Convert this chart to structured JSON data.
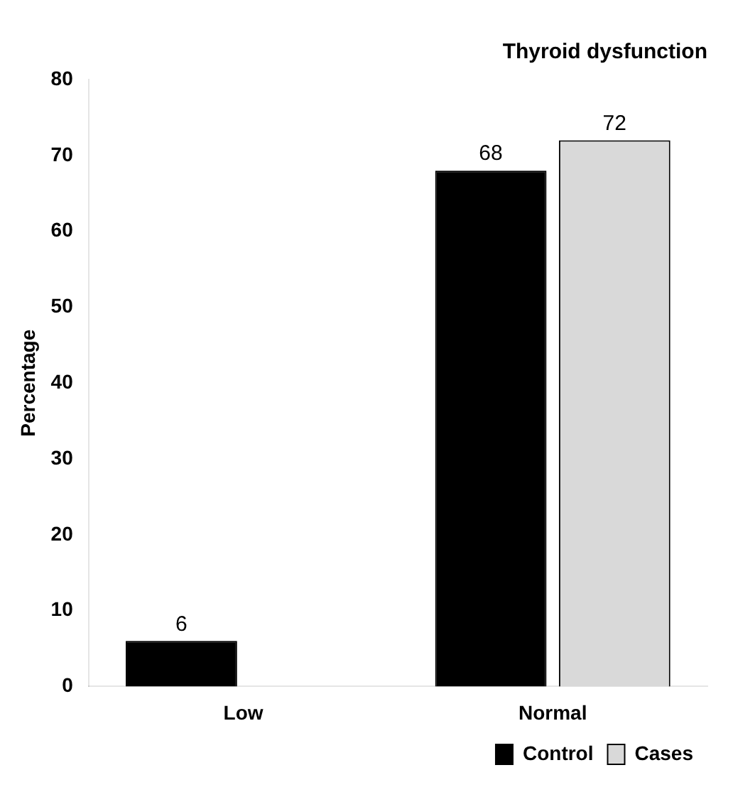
{
  "chart_data": {
    "type": "bar",
    "title": "Thyroid dysfunction",
    "ylabel": "Percentage",
    "categories": [
      "Low",
      "Normal"
    ],
    "series": [
      {
        "name": "Control",
        "color": "#000000",
        "values": [
          6,
          68
        ],
        "value_labels": [
          "6",
          "68"
        ]
      },
      {
        "name": "Cases",
        "color": "#d9d9d9",
        "values": [
          null,
          72
        ],
        "value_labels": [
          null,
          "72"
        ]
      }
    ],
    "ylim": [
      0,
      80
    ],
    "yticks": [
      0,
      10,
      20,
      30,
      40,
      50,
      60,
      70,
      80
    ],
    "grid": false,
    "legend": "bottom right"
  }
}
